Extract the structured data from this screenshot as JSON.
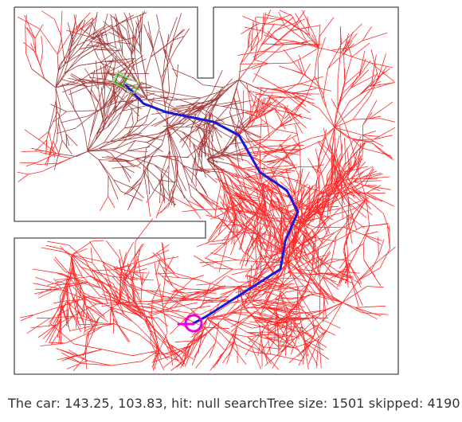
{
  "status": {
    "car_prefix": "The car:",
    "car_x": "143.25",
    "car_y": "103.83",
    "hit_text": "hit: null",
    "tree_prefix": "searchTree size:",
    "tree_size": "1501",
    "skipped_prefix": "skipped:",
    "skipped": "4190"
  },
  "colors": {
    "walls": "#4a4a4a",
    "tree": "#ff2a2a",
    "tree_near_start": "#a33a3a",
    "path": "#1a1ad6",
    "goal_marker": "#e600e6",
    "car_body": "#1faa1f",
    "car_box": "#7fe07f"
  },
  "icons": {
    "car": "car-icon",
    "goal": "goal-marker-icon"
  }
}
